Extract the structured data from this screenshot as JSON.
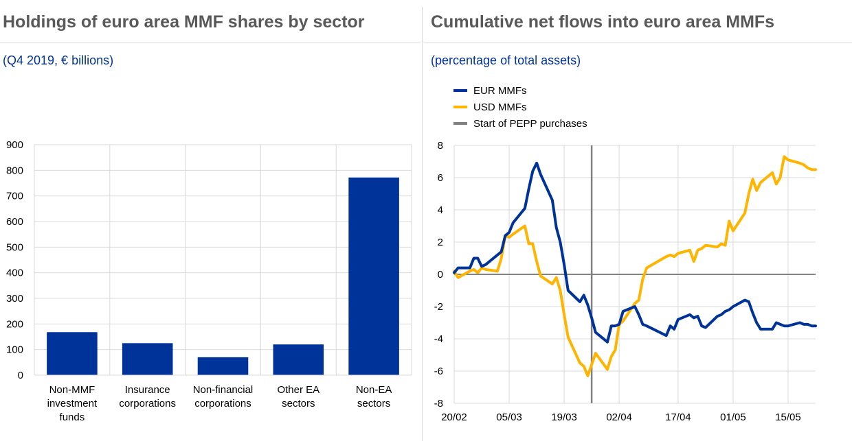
{
  "chart_data": [
    {
      "type": "bar",
      "title": "Holdings of euro area MMF shares by sector",
      "subtitle": "(Q4 2019, € billions)",
      "categories": [
        [
          "Non-MMF",
          "investment",
          "funds"
        ],
        [
          "Insurance",
          "corporations"
        ],
        [
          "Non-financial",
          "corporations"
        ],
        [
          "Other EA",
          "sectors"
        ],
        [
          "Non-EA",
          "sectors"
        ]
      ],
      "values": [
        168,
        125,
        70,
        120,
        772
      ],
      "ylim": [
        0,
        900
      ],
      "yticks": [
        0,
        100,
        200,
        300,
        400,
        500,
        600,
        700,
        800,
        900
      ],
      "grid": true,
      "color": "#003399"
    },
    {
      "type": "line",
      "title": "Cumulative net flows into euro area MMFs",
      "subtitle": "(percentage of total assets)",
      "ylim": [
        -8,
        8
      ],
      "yticks": [
        -8,
        -6,
        -4,
        -2,
        0,
        2,
        4,
        6,
        8
      ],
      "xlim": [
        "20/02",
        "22/05"
      ],
      "xticks": [
        "20/02",
        "05/03",
        "19/03",
        "02/04",
        "17/04",
        "01/05",
        "15/05"
      ],
      "legend_position": "top-left",
      "grid": true,
      "x": [
        "20/02",
        "21/02",
        "24/02",
        "25/02",
        "26/02",
        "27/02",
        "28/02",
        "02/03",
        "03/03",
        "04/03",
        "05/03",
        "06/03",
        "09/03",
        "10/03",
        "11/03",
        "12/03",
        "13/03",
        "16/03",
        "17/03",
        "18/03",
        "19/03",
        "20/03",
        "23/03",
        "24/03",
        "25/03",
        "26/03",
        "27/03",
        "30/03",
        "31/03",
        "01/04",
        "02/04",
        "03/04",
        "06/04",
        "07/04",
        "08/04",
        "09/04",
        "14/04",
        "15/04",
        "16/04",
        "17/04",
        "20/04",
        "21/04",
        "22/04",
        "23/04",
        "24/04",
        "27/04",
        "28/04",
        "29/04",
        "30/04",
        "01/05",
        "04/05",
        "05/05",
        "06/05",
        "07/05",
        "08/05",
        "11/05",
        "12/05",
        "13/05",
        "14/05",
        "15/05",
        "18/05",
        "19/05",
        "20/05",
        "21/05",
        "22/05"
      ],
      "series": [
        {
          "name": "EUR MMFs",
          "color": "#003399",
          "values": [
            0.1,
            0.4,
            0.4,
            1.0,
            1.0,
            0.5,
            0.6,
            1.2,
            1.4,
            2.4,
            2.6,
            3.2,
            4.1,
            5.3,
            6.4,
            6.9,
            6.2,
            4.6,
            2.9,
            2.0,
            0.6,
            -1.0,
            -1.7,
            -1.3,
            -1.9,
            -2.7,
            -3.6,
            -4.2,
            -3.2,
            -3.2,
            -3.1,
            -2.3,
            -2.0,
            -2.5,
            -3.1,
            -3.2,
            -3.8,
            -3.2,
            -3.4,
            -2.8,
            -2.5,
            -2.7,
            -2.6,
            -3.2,
            -3.3,
            -2.6,
            -2.5,
            -2.3,
            -2.2,
            -2.0,
            -1.6,
            -1.7,
            -2.4,
            -3.0,
            -3.4,
            -3.4,
            -3.0,
            -3.1,
            -3.2,
            -3.2,
            -3.0,
            -3.1,
            -3.1,
            -3.2,
            -3.2
          ]
        },
        {
          "name": "USD MMFs",
          "color": "#ffb400",
          "values": [
            0.2,
            -0.2,
            0.2,
            0.3,
            0.1,
            0.4,
            0.3,
            0.2,
            1.0,
            2.4,
            2.3,
            2.5,
            3.0,
            1.9,
            1.9,
            0.8,
            -0.1,
            -0.6,
            -0.2,
            -1.0,
            -2.5,
            -3.9,
            -5.5,
            -5.7,
            -6.3,
            -5.6,
            -4.9,
            -5.9,
            -5.1,
            -4.7,
            -3.1,
            -2.9,
            -1.8,
            -1.6,
            -0.3,
            0.4,
            1.1,
            1.2,
            1.1,
            1.3,
            1.5,
            0.8,
            1.5,
            1.6,
            1.8,
            1.7,
            1.9,
            1.8,
            3.3,
            2.7,
            3.8,
            5.0,
            5.9,
            5.2,
            5.7,
            6.3,
            5.6,
            6.0,
            7.3,
            7.1,
            6.9,
            6.8,
            6.6,
            6.5,
            6.5
          ]
        },
        {
          "name": "Start of PEPP purchases",
          "color": "#808080",
          "x": "26/03"
        }
      ]
    }
  ]
}
